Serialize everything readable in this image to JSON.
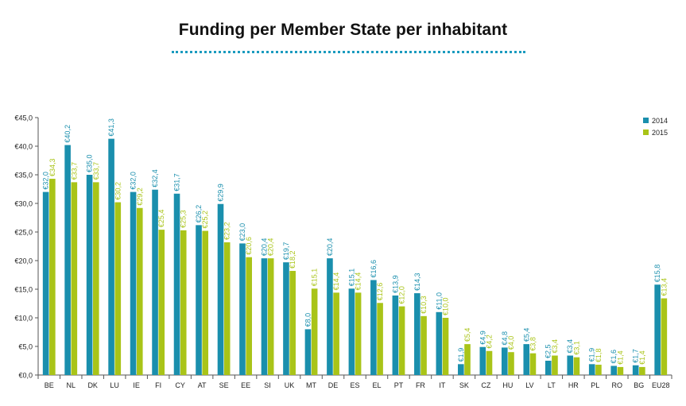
{
  "chart_data": {
    "type": "bar",
    "title": "Funding per Member State per inhabitant",
    "xlabel": "",
    "ylabel": "",
    "ylim": [
      0,
      45
    ],
    "y_ticks": [
      "€0,0",
      "€5,0",
      "€10,0",
      "€15,0",
      "€20,0",
      "€25,0",
      "€30,0",
      "€35,0",
      "€40,0",
      "€45,0"
    ],
    "legend_position": "top-right",
    "categories": [
      "BE",
      "NL",
      "DK",
      "LU",
      "IE",
      "FI",
      "CY",
      "AT",
      "SE",
      "EE",
      "SI",
      "UK",
      "MT",
      "DE",
      "ES",
      "EL",
      "PT",
      "FR",
      "IT",
      "SK",
      "CZ",
      "HU",
      "LV",
      "LT",
      "HR",
      "PL",
      "RO",
      "BG",
      "EU28"
    ],
    "series": [
      {
        "name": "2014",
        "color": "#1a8fad",
        "values": [
          32.0,
          40.2,
          35.0,
          41.3,
          32.0,
          32.4,
          31.7,
          26.2,
          29.9,
          23.0,
          20.4,
          19.7,
          8.0,
          20.4,
          15.1,
          16.6,
          13.9,
          14.3,
          11.0,
          1.9,
          4.9,
          4.8,
          5.4,
          2.5,
          3.4,
          1.9,
          1.6,
          1.7,
          15.8
        ],
        "labels": [
          "€32,0",
          "€40,2",
          "€35,0",
          "€41,3",
          "€32,0",
          "€32,4",
          "€31,7",
          "€26,2",
          "€29,9",
          "€23,0",
          "€20,4",
          "€19,7",
          "€8,0",
          "€20,4",
          "€15,1",
          "€16,6",
          "€13,9",
          "€14,3",
          "€11,0",
          "€1,9",
          "€4,9",
          "€4,8",
          "€5,4",
          "€2,5",
          "€3,4",
          "€1,9",
          "€1,6",
          "€1,7",
          "€15,8"
        ]
      },
      {
        "name": "2015",
        "color": "#a9c418",
        "values": [
          34.3,
          33.7,
          33.7,
          30.2,
          29.2,
          25.4,
          25.3,
          25.2,
          23.2,
          20.6,
          20.4,
          18.2,
          15.1,
          14.4,
          14.4,
          12.6,
          12.0,
          10.3,
          10.0,
          5.4,
          4.2,
          4.0,
          3.8,
          3.4,
          3.1,
          1.8,
          1.4,
          1.4,
          13.4
        ],
        "labels": [
          "€34,3",
          "€33,7",
          "€33,7",
          "€30,2",
          "€29,2",
          "€25,4",
          "€25,3",
          "€25,2",
          "€23,2",
          "€20,6",
          "€20,4",
          "€18,2",
          "€15,1",
          "€14,4",
          "€14,4",
          "€12,6",
          "€12,0",
          "€10,3",
          "€10,0",
          "€5,4",
          "€4,2",
          "€4,0",
          "€3,8",
          "€3,4",
          "€3,1",
          "€1,8",
          "€1,4",
          "€1,4",
          "€13,4"
        ]
      }
    ]
  }
}
